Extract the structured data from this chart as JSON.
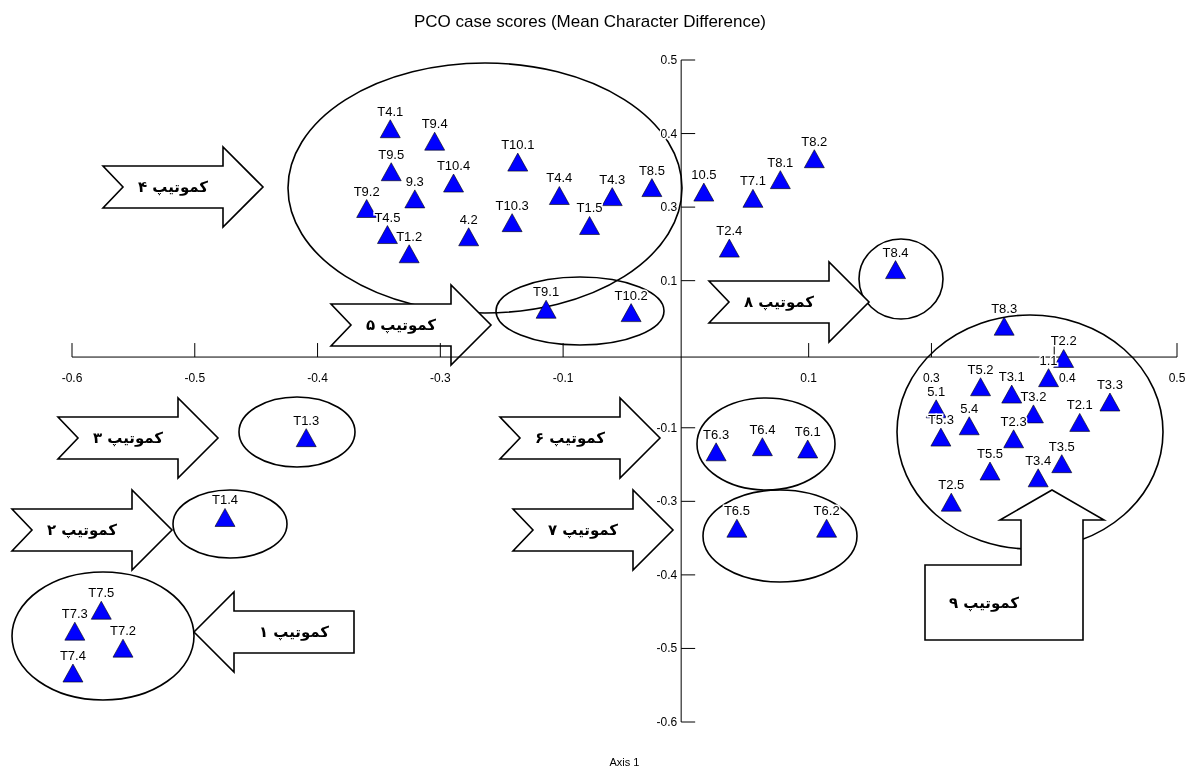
{
  "chart_data": {
    "type": "scatter",
    "title": "PCO case scores (Mean Character Difference)",
    "xlabel": "Axis 1",
    "x": [
      -0.308,
      -0.261,
      -0.173,
      -0.307,
      -0.241,
      -0.282,
      -0.333,
      -0.129,
      -0.073,
      -0.031,
      0.024,
      0.076,
      0.105,
      0.141,
      -0.179,
      -0.097,
      -0.311,
      -0.225,
      -0.288,
      0.051,
      -0.143,
      -0.053,
      0.227,
      0.342,
      0.405,
      0.389,
      0.317,
      0.35,
      0.454,
      0.27,
      0.373,
      0.422,
      0.305,
      0.275,
      0.352,
      0.403,
      0.327,
      0.378,
      0.286,
      -0.397,
      -0.483,
      -0.614,
      -0.642,
      -0.591,
      -0.644,
      0.037,
      0.086,
      0.134,
      0.059,
      0.154
    ],
    "values": [
      0.4,
      0.378,
      0.341,
      0.324,
      0.304,
      0.276,
      0.259,
      0.282,
      0.28,
      0.296,
      0.288,
      0.277,
      0.31,
      0.347,
      0.234,
      0.229,
      0.213,
      0.209,
      0.179,
      0.189,
      0.081,
      0.075,
      0.151,
      0.051,
      -0.006,
      -0.04,
      -0.056,
      -0.069,
      -0.083,
      -0.095,
      -0.104,
      -0.119,
      -0.125,
      -0.145,
      -0.148,
      -0.192,
      -0.205,
      -0.217,
      -0.26,
      -0.146,
      -0.287,
      -0.451,
      -0.488,
      -0.518,
      -0.562,
      -0.171,
      -0.162,
      -0.166,
      -0.306,
      -0.306
    ],
    "color": "#0000ff",
    "marker": "triangle",
    "xlim": [
      -0.645,
      0.525
    ],
    "ylim": [
      -0.645,
      0.525
    ],
    "xticks": [
      {
        "value": -0.645,
        "label": "-0.6"
      },
      {
        "value": -0.515,
        "label": "-0.5"
      },
      {
        "value": -0.385,
        "label": "-0.4"
      },
      {
        "value": -0.255,
        "label": "-0.3"
      },
      {
        "value": -0.125,
        "label": "-0.1"
      },
      {
        "value": 0.135,
        "label": "0.1"
      },
      {
        "value": 0.265,
        "label": "0.3"
      },
      {
        "value": 0.395,
        "label": "0.4"
      },
      {
        "value": 0.525,
        "label": "0.5"
      }
    ],
    "yticks": [
      {
        "value": -0.645,
        "label": "-0.6"
      },
      {
        "value": -0.515,
        "label": "-0.5"
      },
      {
        "value": -0.385,
        "label": "-0.4"
      },
      {
        "value": -0.255,
        "label": "-0.3"
      },
      {
        "value": -0.125,
        "label": "-0.1"
      },
      {
        "value": 0.135,
        "label": "0.1"
      },
      {
        "value": 0.265,
        "label": "0.3"
      },
      {
        "value": 0.395,
        "label": "0.4"
      },
      {
        "value": 0.525,
        "label": "0.5"
      }
    ],
    "annotations": [
      {
        "text": "T4.1",
        "x": -0.308,
        "y": 0.4
      },
      {
        "text": "T9.4",
        "x": -0.261,
        "y": 0.378
      },
      {
        "text": "T10.1",
        "x": -0.173,
        "y": 0.341
      },
      {
        "text": "T9.5",
        "x": -0.307,
        "y": 0.324
      },
      {
        "text": "T10.4",
        "x": -0.241,
        "y": 0.304
      },
      {
        "text": "9.3",
        "x": -0.282,
        "y": 0.276
      },
      {
        "text": "T9.2",
        "x": -0.333,
        "y": 0.259
      },
      {
        "text": "T4.4",
        "x": -0.129,
        "y": 0.282
      },
      {
        "text": "T4.3",
        "x": -0.073,
        "y": 0.28
      },
      {
        "text": "T8.5",
        "x": -0.031,
        "y": 0.296
      },
      {
        "text": "10.5",
        "x": 0.024,
        "y": 0.288
      },
      {
        "text": "T7.1",
        "x": 0.076,
        "y": 0.277
      },
      {
        "text": "T8.1",
        "x": 0.105,
        "y": 0.31
      },
      {
        "text": "T8.2",
        "x": 0.141,
        "y": 0.347
      },
      {
        "text": "T10.3",
        "x": -0.179,
        "y": 0.234
      },
      {
        "text": "T1.5",
        "x": -0.097,
        "y": 0.229
      },
      {
        "text": "T4.5",
        "x": -0.311,
        "y": 0.213
      },
      {
        "text": "4.2",
        "x": -0.225,
        "y": 0.209
      },
      {
        "text": "T1.2",
        "x": -0.288,
        "y": 0.179
      },
      {
        "text": "T2.4",
        "x": 0.051,
        "y": 0.189
      },
      {
        "text": "T9.1",
        "x": -0.143,
        "y": 0.081
      },
      {
        "text": "T10.2",
        "x": -0.053,
        "y": 0.075
      },
      {
        "text": "T8.4",
        "x": 0.227,
        "y": 0.151
      },
      {
        "text": "T8.3",
        "x": 0.342,
        "y": 0.051
      },
      {
        "text": "T2.2",
        "x": 0.405,
        "y": -0.006
      },
      {
        "text": "1.1",
        "x": 0.389,
        "y": -0.04
      },
      {
        "text": "T5.2",
        "x": 0.317,
        "y": -0.056
      },
      {
        "text": "T3.1",
        "x": 0.35,
        "y": -0.069
      },
      {
        "text": "T3.3",
        "x": 0.454,
        "y": -0.083
      },
      {
        "text": "5.1",
        "x": 0.27,
        "y": -0.095
      },
      {
        "text": "T3.2",
        "x": 0.373,
        "y": -0.104
      },
      {
        "text": "T2.1",
        "x": 0.422,
        "y": -0.119
      },
      {
        "text": "5.4",
        "x": 0.305,
        "y": -0.125
      },
      {
        "text": "T5.3",
        "x": 0.275,
        "y": -0.145
      },
      {
        "text": "T2.3",
        "x": 0.352,
        "y": -0.148
      },
      {
        "text": "T3.5",
        "x": 0.403,
        "y": -0.192
      },
      {
        "text": "T5.5",
        "x": 0.327,
        "y": -0.205
      },
      {
        "text": "T3.4",
        "x": 0.378,
        "y": -0.217
      },
      {
        "text": "T2.5",
        "x": 0.286,
        "y": -0.26
      },
      {
        "text": "T1.3",
        "x": -0.397,
        "y": -0.146
      },
      {
        "text": "T1.4",
        "x": -0.483,
        "y": -0.287
      },
      {
        "text": "T7.5",
        "x": -0.614,
        "y": -0.451
      },
      {
        "text": "T7.3",
        "x": -0.642,
        "y": -0.488
      },
      {
        "text": "T7.2",
        "x": -0.591,
        "y": -0.518
      },
      {
        "text": "T7.4",
        "x": -0.644,
        "y": -0.562
      },
      {
        "text": "T6.3",
        "x": 0.037,
        "y": -0.171
      },
      {
        "text": "T6.4",
        "x": 0.086,
        "y": -0.162
      },
      {
        "text": "T6.1",
        "x": 0.134,
        "y": -0.166
      },
      {
        "text": "T6.5",
        "x": 0.059,
        "y": -0.306
      },
      {
        "text": "T6.2",
        "x": 0.154,
        "y": -0.306
      },
      "کموتیپ ۱",
      "کموتیپ ۲",
      "کموتیپ ۳",
      "کموتیپ ۴",
      "کموتیپ ۵",
      "کموتیپ ۶",
      "کموتیپ ۷",
      "کموتیپ ۸",
      "کموتیپ ۹"
    ]
  }
}
